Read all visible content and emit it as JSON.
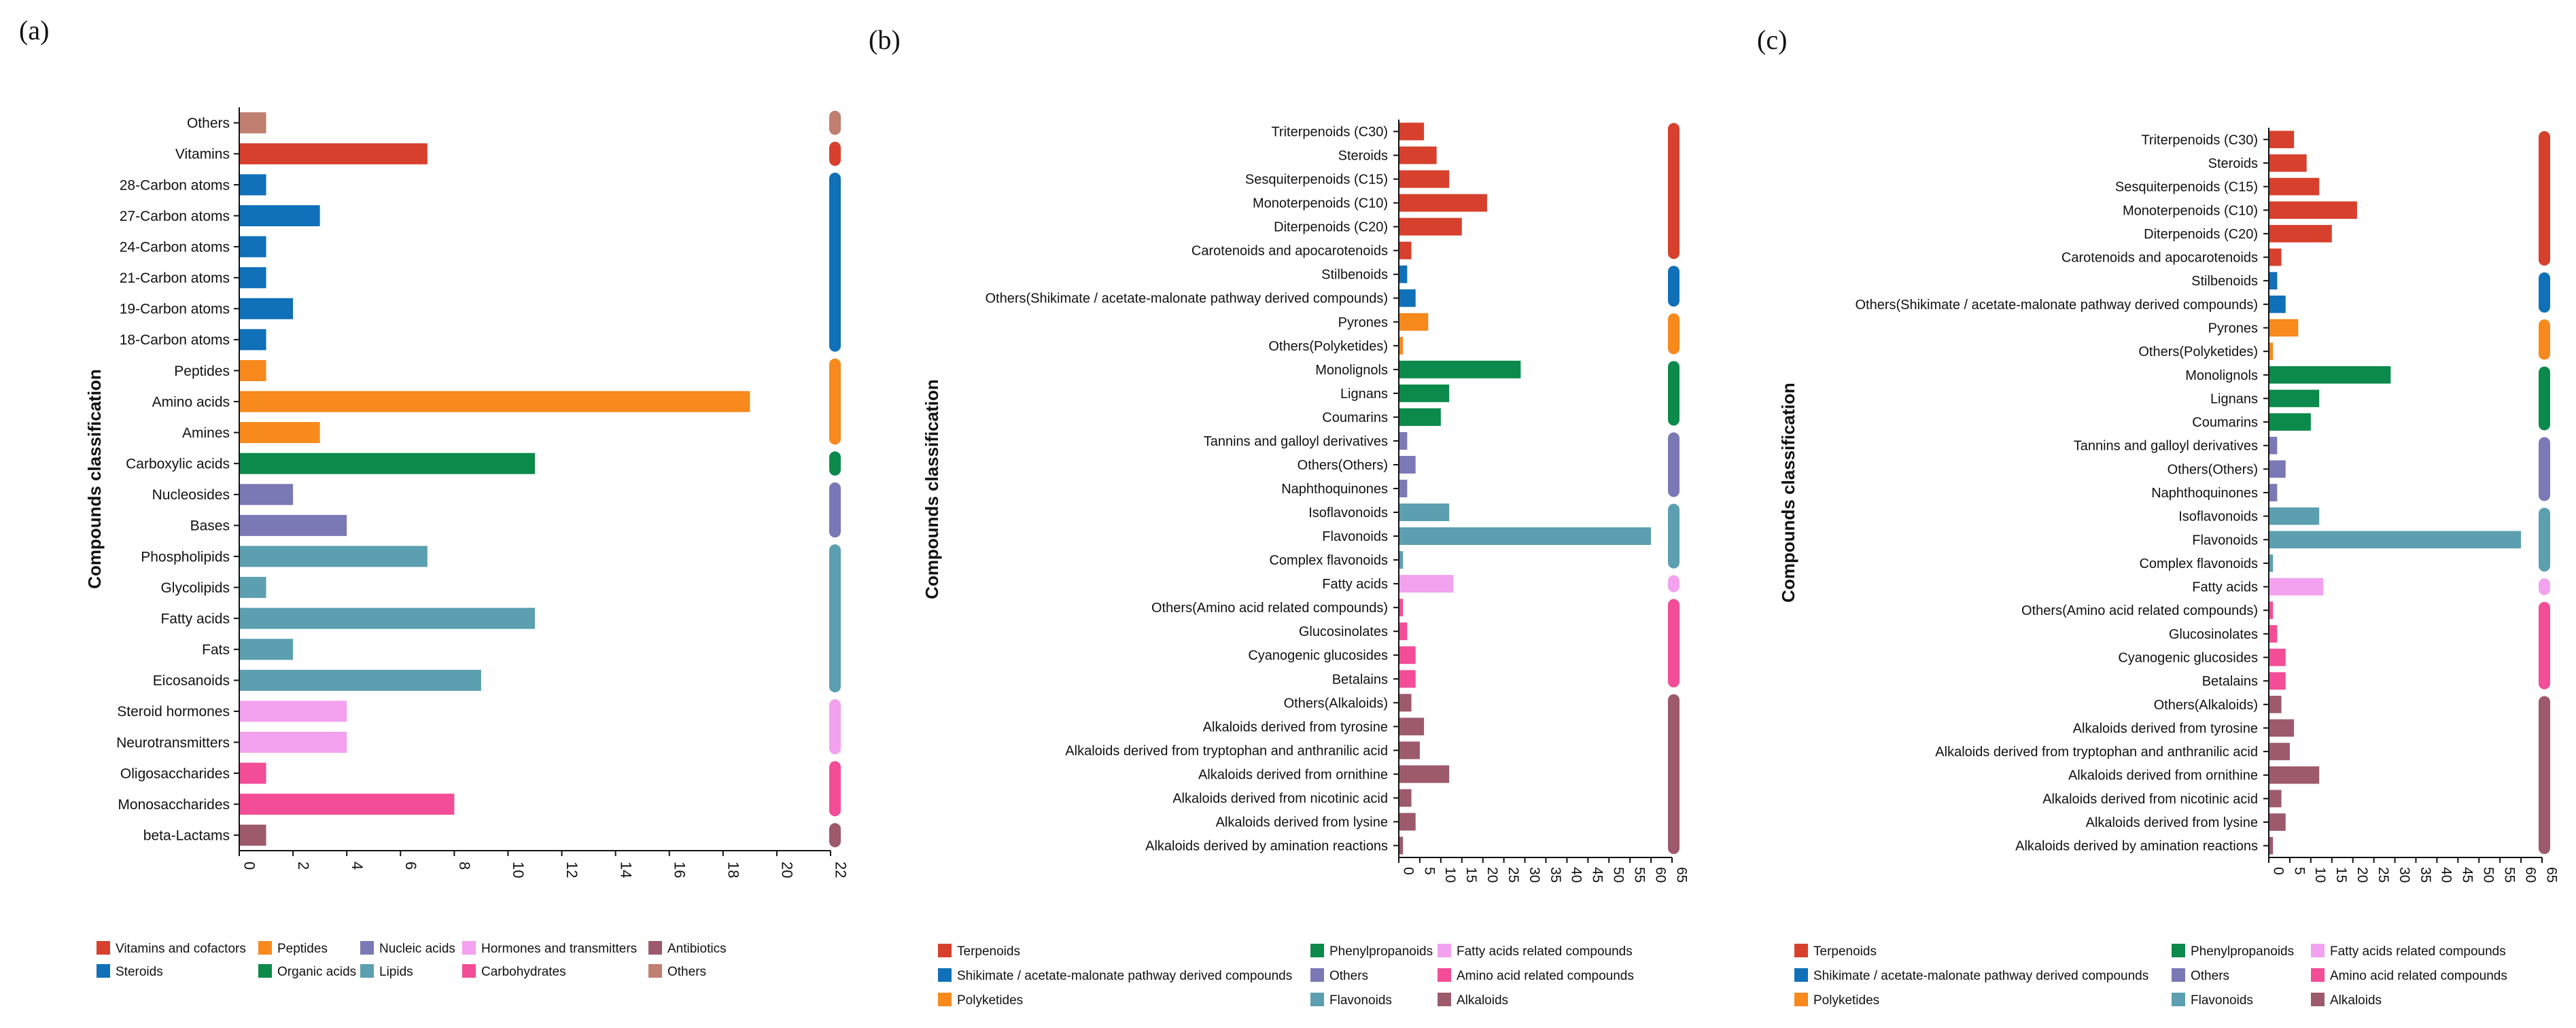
{
  "colors": {
    "vitamins": "#d7402d",
    "steroids": "#1070b8",
    "peptides": "#f7891d",
    "organic": "#0b8a4b",
    "nucleic": "#7b78b6",
    "lipids": "#5c9fb0",
    "hormones": "#f3a2f0",
    "carbo": "#f34d97",
    "antibiotics": "#9c5a6b",
    "others": "#c07f70",
    "terpenoids": "#d7402d",
    "shikimate": "#1070b8",
    "polyketides": "#f7891d",
    "phenylpropanoids": "#0b8a4b",
    "others2": "#7b78b6",
    "flavonoids": "#5c9fb0",
    "fatty": "#f3a2f0",
    "amino": "#f34d97",
    "alkaloids": "#9c5a6b"
  },
  "chart_data": [
    {
      "type": "bar",
      "orientation": "horizontal",
      "panel_label": "(a)",
      "ylabel": "Compounds classification",
      "xlim": [
        0,
        22
      ],
      "xticks": [
        "0",
        "2",
        "4",
        "6",
        "8",
        "10",
        "12",
        "14",
        "16",
        "18",
        "20",
        "22"
      ],
      "categories": [
        "Others",
        "Vitamins",
        "28-Carbon atoms",
        "27-Carbon atoms",
        "24-Carbon atoms",
        "21-Carbon atoms",
        "19-Carbon atoms",
        "18-Carbon atoms",
        "Peptides",
        "Amino acids",
        "Amines",
        "Carboxylic acids",
        "Nucleosides",
        "Bases",
        "Phospholipids",
        "Glycolipids",
        "Fatty acids",
        "Fats",
        "Eicosanoids",
        "Steroid hormones",
        "Neurotransmitters",
        "Oligosaccharides",
        "Monosaccharides",
        "beta-Lactams"
      ],
      "values": [
        1,
        7,
        1,
        3,
        1,
        1,
        2,
        1,
        1,
        19,
        3,
        11,
        2,
        4,
        7,
        1,
        11,
        2,
        9,
        4,
        4,
        1,
        8,
        1
      ],
      "bar_groups": [
        "others",
        "vitamins",
        "steroids",
        "steroids",
        "steroids",
        "steroids",
        "steroids",
        "steroids",
        "peptides",
        "peptides",
        "peptides",
        "organic",
        "nucleic",
        "nucleic",
        "lipids",
        "lipids",
        "lipids",
        "lipids",
        "lipids",
        "hormones",
        "hormones",
        "carbo",
        "carbo",
        "antibiotics"
      ],
      "legend": [
        {
          "label": "Vitamins and cofactors",
          "group": "vitamins"
        },
        {
          "label": "Peptides",
          "group": "peptides"
        },
        {
          "label": "Nucleic acids",
          "group": "nucleic"
        },
        {
          "label": "Hormones and transmitters",
          "group": "hormones"
        },
        {
          "label": "Antibiotics",
          "group": "antibiotics"
        },
        {
          "label": "Steroids",
          "group": "steroids"
        },
        {
          "label": "Organic acids",
          "group": "organic"
        },
        {
          "label": "Lipids",
          "group": "lipids"
        },
        {
          "label": "Carbohydrates",
          "group": "carbo"
        },
        {
          "label": "Others",
          "group": "others"
        }
      ]
    },
    {
      "type": "bar",
      "orientation": "horizontal",
      "panel_label": "(b)",
      "ylabel": "Compounds classification",
      "xlim": [
        0,
        65
      ],
      "xticks": [
        "0",
        "5",
        "10",
        "15",
        "20",
        "25",
        "30",
        "35",
        "40",
        "45",
        "50",
        "55",
        "60",
        "65"
      ],
      "categories": [
        "Triterpenoids (C30)",
        "Steroids",
        "Sesquiterpenoids (C15)",
        "Monoterpenoids (C10)",
        "Diterpenoids (C20)",
        "Carotenoids and apocarotenoids",
        "Stilbenoids",
        "Others(Shikimate / acetate-malonate pathway derived compounds)",
        "Pyrones",
        "Others(Polyketides)",
        "Monolignols",
        "Lignans",
        "Coumarins",
        "Tannins and galloyl derivatives",
        "Others(Others)",
        "Naphthoquinones",
        "Isoflavonoids",
        "Flavonoids",
        "Complex flavonoids",
        "Fatty acids",
        "Others(Amino acid related compounds)",
        "Glucosinolates",
        "Cyanogenic glucosides",
        "Betalains",
        "Others(Alkaloids)",
        "Alkaloids derived from tyrosine",
        "Alkaloids derived from tryptophan and anthranilic acid",
        "Alkaloids derived from ornithine",
        "Alkaloids derived from nicotinic acid",
        "Alkaloids derived from lysine",
        "Alkaloids derived by amination reactions"
      ],
      "values": [
        6,
        9,
        12,
        21,
        15,
        3,
        2,
        4,
        7,
        1,
        29,
        12,
        10,
        2,
        4,
        2,
        12,
        60,
        1,
        13,
        1,
        2,
        4,
        4,
        3,
        6,
        5,
        12,
        3,
        4,
        1
      ],
      "bar_groups": [
        "terpenoids",
        "terpenoids",
        "terpenoids",
        "terpenoids",
        "terpenoids",
        "terpenoids",
        "shikimate",
        "shikimate",
        "polyketides",
        "polyketides",
        "phenylpropanoids",
        "phenylpropanoids",
        "phenylpropanoids",
        "others2",
        "others2",
        "others2",
        "flavonoids",
        "flavonoids",
        "flavonoids",
        "fatty",
        "amino",
        "amino",
        "amino",
        "amino",
        "alkaloids",
        "alkaloids",
        "alkaloids",
        "alkaloids",
        "alkaloids",
        "alkaloids",
        "alkaloids"
      ],
      "legend": [
        {
          "label": "Terpenoids",
          "group": "terpenoids"
        },
        {
          "label": "Phenylpropanoids",
          "group": "phenylpropanoids"
        },
        {
          "label": "Fatty acids related compounds",
          "group": "fatty"
        },
        {
          "label": "Shikimate / acetate-malonate pathway derived compounds",
          "group": "shikimate"
        },
        {
          "label": "Others",
          "group": "others2"
        },
        {
          "label": "Amino acid related compounds",
          "group": "amino"
        },
        {
          "label": "Polyketides",
          "group": "polyketides"
        },
        {
          "label": "Flavonoids",
          "group": "flavonoids"
        },
        {
          "label": "Alkaloids",
          "group": "alkaloids"
        }
      ]
    },
    {
      "type": "bar",
      "orientation": "horizontal",
      "panel_label": "(c)",
      "ylabel": "Compounds classification",
      "xlim": [
        0,
        65
      ],
      "xticks": [
        "0",
        "5",
        "10",
        "15",
        "20",
        "25",
        "30",
        "35",
        "40",
        "45",
        "50",
        "55",
        "60",
        "65"
      ],
      "categories": [
        "Triterpenoids (C30)",
        "Steroids",
        "Sesquiterpenoids (C15)",
        "Monoterpenoids (C10)",
        "Diterpenoids (C20)",
        "Carotenoids and apocarotenoids",
        "Stilbenoids",
        "Others(Shikimate / acetate-malonate pathway derived compounds)",
        "Pyrones",
        "Others(Polyketides)",
        "Monolignols",
        "Lignans",
        "Coumarins",
        "Tannins and galloyl derivatives",
        "Others(Others)",
        "Naphthoquinones",
        "Isoflavonoids",
        "Flavonoids",
        "Complex flavonoids",
        "Fatty acids",
        "Others(Amino acid related compounds)",
        "Glucosinolates",
        "Cyanogenic glucosides",
        "Betalains",
        "Others(Alkaloids)",
        "Alkaloids derived from tyrosine",
        "Alkaloids derived from tryptophan and anthranilic acid",
        "Alkaloids derived from ornithine",
        "Alkaloids derived from nicotinic acid",
        "Alkaloids derived from lysine",
        "Alkaloids derived by amination reactions"
      ],
      "values": [
        6,
        9,
        12,
        21,
        15,
        3,
        2,
        4,
        7,
        1,
        29,
        12,
        10,
        2,
        4,
        2,
        12,
        60,
        1,
        13,
        1,
        2,
        4,
        4,
        3,
        6,
        5,
        12,
        3,
        4,
        1
      ],
      "bar_groups": [
        "terpenoids",
        "terpenoids",
        "terpenoids",
        "terpenoids",
        "terpenoids",
        "terpenoids",
        "shikimate",
        "shikimate",
        "polyketides",
        "polyketides",
        "phenylpropanoids",
        "phenylpropanoids",
        "phenylpropanoids",
        "others2",
        "others2",
        "others2",
        "flavonoids",
        "flavonoids",
        "flavonoids",
        "fatty",
        "amino",
        "amino",
        "amino",
        "amino",
        "alkaloids",
        "alkaloids",
        "alkaloids",
        "alkaloids",
        "alkaloids",
        "alkaloids",
        "alkaloids"
      ],
      "legend": [
        {
          "label": "Terpenoids",
          "group": "terpenoids"
        },
        {
          "label": "Phenylpropanoids",
          "group": "phenylpropanoids"
        },
        {
          "label": "Fatty acids related compounds",
          "group": "fatty"
        },
        {
          "label": "Shikimate / acetate-malonate pathway derived compounds",
          "group": "shikimate"
        },
        {
          "label": "Others",
          "group": "others2"
        },
        {
          "label": "Amino acid related compounds",
          "group": "amino"
        },
        {
          "label": "Polyketides",
          "group": "polyketides"
        },
        {
          "label": "Flavonoids",
          "group": "flavonoids"
        },
        {
          "label": "Alkaloids",
          "group": "alkaloids"
        }
      ]
    }
  ]
}
